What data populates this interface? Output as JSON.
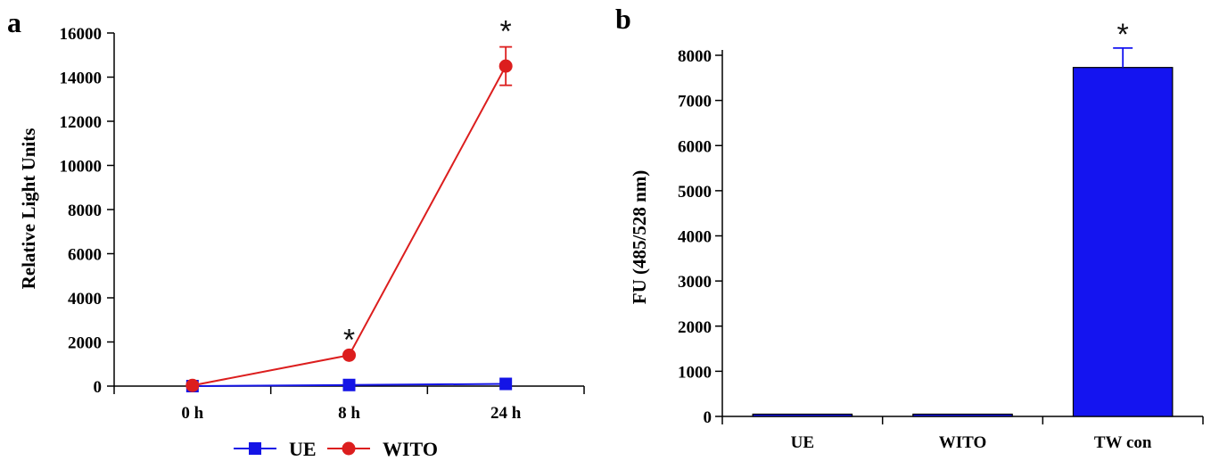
{
  "chart_data": [
    {
      "panel": "a",
      "type": "line",
      "categories": [
        "0 h",
        "8 h",
        "24 h"
      ],
      "ylabel": "Relative Light Units",
      "xlabel": "",
      "ylim": [
        0,
        16000
      ],
      "yticks": [
        0,
        2000,
        4000,
        6000,
        8000,
        10000,
        12000,
        14000,
        16000
      ],
      "series": [
        {
          "name": "UE",
          "color": "#1414e6",
          "marker": "square",
          "values": [
            0,
            50,
            100
          ],
          "errors": [
            0,
            0,
            0
          ]
        },
        {
          "name": "WITO",
          "color": "#dc1e1e",
          "marker": "circle",
          "values": [
            30,
            1400,
            14500
          ],
          "errors": [
            0,
            0,
            870
          ]
        }
      ],
      "annotations": [
        {
          "category": "8 h",
          "text": "*"
        },
        {
          "category": "24 h",
          "text": "*"
        }
      ],
      "legend_position": "bottom"
    },
    {
      "panel": "b",
      "type": "bar",
      "categories": [
        "UE",
        "WITO",
        "TW con"
      ],
      "values": [
        50,
        50,
        7730
      ],
      "errors": [
        0,
        0,
        430
      ],
      "ylabel": "FU (485/528 nm)",
      "xlabel": "",
      "ylim": [
        0,
        8000
      ],
      "yticks": [
        0,
        1000,
        2000,
        3000,
        4000,
        5000,
        6000,
        7000,
        8000
      ],
      "color": "#1414f0",
      "annotations": [
        {
          "category": "TW con",
          "text": "*"
        }
      ]
    }
  ]
}
